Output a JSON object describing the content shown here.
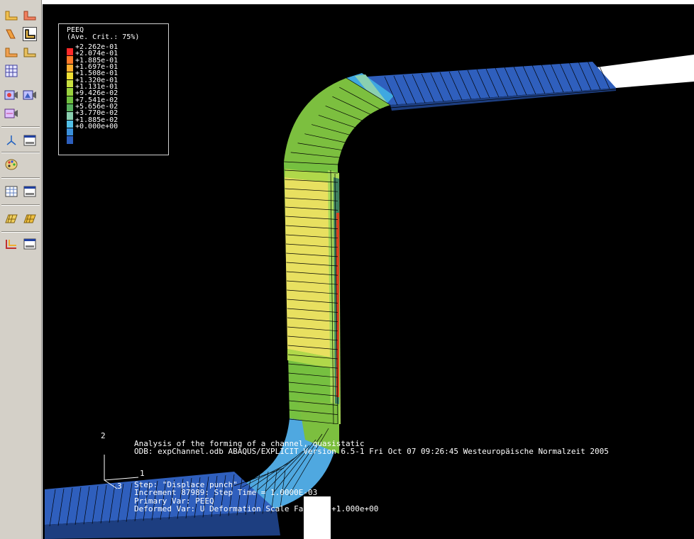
{
  "toolbox": {
    "groups": [
      [
        "element-display-icon",
        "element-display-2-icon"
      ],
      [
        "node-display-icon",
        "element-edge-icon"
      ],
      [
        "element-face-icon",
        "element-feature-icon"
      ],
      [
        "mesh-icon"
      ],
      [
        "camera-icon",
        "camera-2-icon"
      ],
      [
        "camera-3-icon"
      ],
      [
        "triad-icon",
        "display-window-icon"
      ],
      [
        "color-palette-icon"
      ],
      [
        "table-icon",
        "window-options-icon"
      ],
      [
        "contour-plot-icon",
        "deformed-shape-icon"
      ],
      [
        "xy-plot-icon",
        "report-window-icon"
      ]
    ]
  },
  "legend": {
    "title": "PEEQ",
    "subtitle": "(Ave. Crit.: 75%)",
    "labels": [
      "+2.262e-01",
      "+2.074e-01",
      "+1.885e-01",
      "+1.697e-01",
      "+1.508e-01",
      "+1.320e-01",
      "+1.131e-01",
      "+9.426e-02",
      "+7.541e-02",
      "+5.656e-02",
      "+3.770e-02",
      "+1.885e-02",
      "+0.000e+00"
    ],
    "colors": [
      "#ff2a2a",
      "#ff7a2a",
      "#ffb030",
      "#f0e034",
      "#c8e040",
      "#9ad23e",
      "#70c040",
      "#58b060",
      "#8ad0b0",
      "#52c0e8",
      "#3a90dc",
      "#2d5fbd"
    ]
  },
  "info": {
    "line1": "Analysis of the forming of a channel, quasistatic",
    "line2": "ODB: expChannel.odb    ABAQUS/EXPLICIT Version 6.5-1    Fri Oct 07 09:26:45 Westeuropäische Normalzeit 2005",
    "line3": "Step: \"Displace punch\"",
    "line4": "Increment    87989: Step Time =    1.0000E-03",
    "line5": "Primary Var: PEEQ",
    "line6": "Deformed Var: U   Deformation Scale Factor: +1.000e+00"
  },
  "triad": {
    "y": "2",
    "x": "1",
    "z": "3"
  }
}
